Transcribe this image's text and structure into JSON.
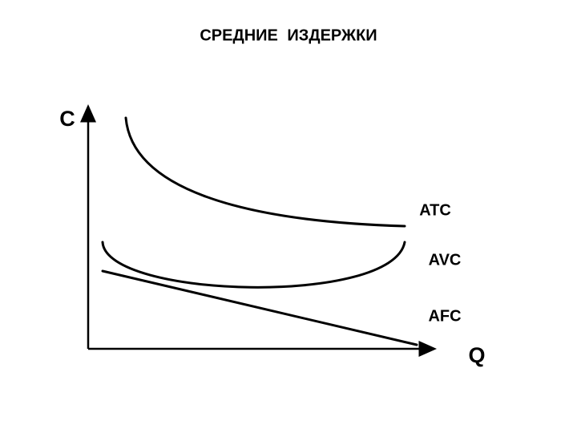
{
  "title": "СРЕДНИЕ ИЗДЕРЖКИ",
  "axes": {
    "y_label": "C",
    "x_label": "Q"
  },
  "curves": [
    {
      "label": "ATC"
    },
    {
      "label": "AVC"
    },
    {
      "label": "AFC"
    }
  ]
}
